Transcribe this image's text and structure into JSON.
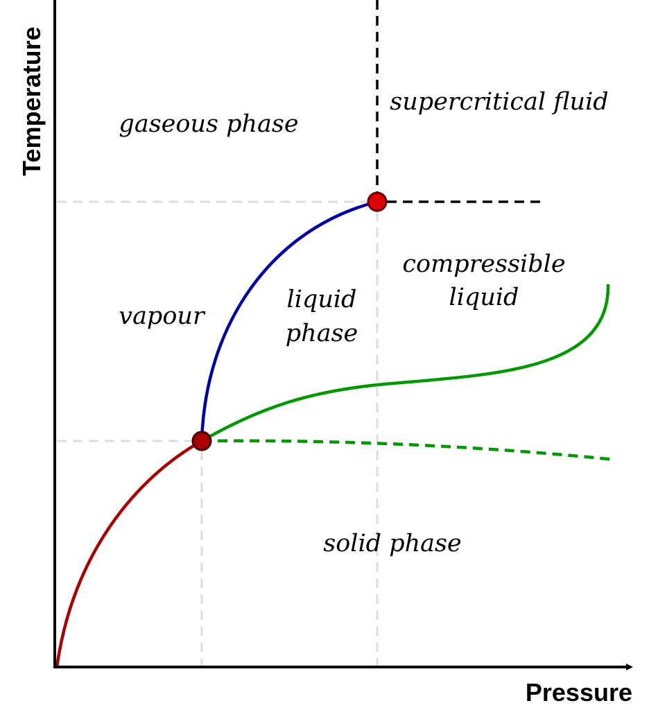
{
  "axes": {
    "x_label": "Pressure",
    "y_label": "Temperature"
  },
  "regions": {
    "supercritical": "supercritical fluid",
    "gaseous": "gaseous phase",
    "compressible_line1": "compressible",
    "compressible_line2": "liquid",
    "vapour": "vapour",
    "liquid_line1": "liquid",
    "liquid_line2": "phase",
    "solid": "solid phase"
  },
  "points": {
    "critical_point_color": "#dd0000",
    "triple_point_color": "#aa0000"
  },
  "curve_colors": {
    "sublimation": "#aa0000",
    "vaporization": "#0000aa",
    "melting": "#009900",
    "reference_lines": "#dddddd"
  }
}
